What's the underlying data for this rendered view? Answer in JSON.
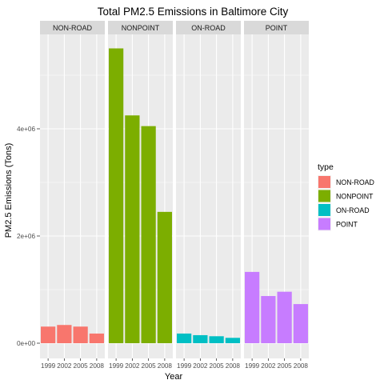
{
  "chart_data": {
    "type": "bar",
    "title": "Total PM2.5 Emissions in Baltimore City",
    "xlabel": "Year",
    "ylabel": "PM2.5 Emissions (Tons)",
    "categories": [
      "1999",
      "2002",
      "2005",
      "2008"
    ],
    "ylim": [
      0,
      6000000
    ],
    "yticks": [
      0,
      2000000,
      4000000
    ],
    "ytick_labels": [
      "0e+00",
      "2e+06",
      "4e+06"
    ],
    "facets": [
      {
        "name": "NON-ROAD",
        "color": "#F8766D",
        "values": [
          310000,
          340000,
          310000,
          180000
        ]
      },
      {
        "name": "NONPOINT",
        "color": "#7CAE00",
        "values": [
          5500000,
          4250000,
          4050000,
          2450000
        ]
      },
      {
        "name": "ON-ROAD",
        "color": "#00BFC4",
        "values": [
          180000,
          150000,
          130000,
          100000
        ]
      },
      {
        "name": "POINT",
        "color": "#C77CFF",
        "values": [
          1330000,
          880000,
          960000,
          730000
        ]
      }
    ],
    "legend": {
      "title": "type",
      "position": "right",
      "items": [
        "NON-ROAD",
        "NONPOINT",
        "ON-ROAD",
        "POINT"
      ]
    },
    "grid": true
  }
}
